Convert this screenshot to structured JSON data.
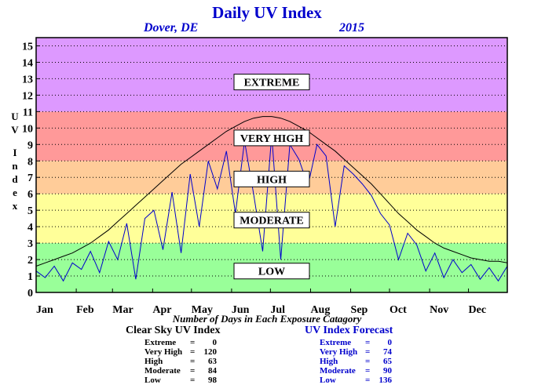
{
  "chart_data": {
    "type": "line",
    "title": "Daily UV Index",
    "location": "Dover, DE",
    "year": "2015",
    "ylabel": "UV Index",
    "xlabel": "Number of Days in Each Exposure Catagory",
    "ylim": [
      0,
      15
    ],
    "yticks": [
      0,
      1,
      2,
      3,
      4,
      5,
      6,
      7,
      8,
      9,
      10,
      11,
      12,
      13,
      14,
      15
    ],
    "xlim": [
      1,
      365
    ],
    "month_labels": [
      "Jan",
      "Feb",
      "Mar",
      "Apr",
      "May",
      "Jun",
      "Jul",
      "Aug",
      "Sep",
      "Oct",
      "Nov",
      "Dec"
    ],
    "month_start_days": [
      1,
      32,
      60,
      91,
      121,
      152,
      182,
      213,
      244,
      274,
      305,
      335
    ],
    "grid": "horizontal-dotted",
    "bands": [
      {
        "label": "LOW",
        "from": 0,
        "to": 3,
        "color": "#99ff99",
        "label_y": 1.3
      },
      {
        "label": "MODERATE",
        "from": 3,
        "to": 6,
        "color": "#ffff99",
        "label_y": 4.4
      },
      {
        "label": "HIGH",
        "from": 6,
        "to": 8,
        "color": "#ffcc99",
        "label_y": 6.9
      },
      {
        "label": "VERY HIGH",
        "from": 8,
        "to": 11,
        "color": "#ff9999",
        "label_y": 9.4
      },
      {
        "label": "EXTREME",
        "from": 11,
        "to": 15.5,
        "color": "#dd99ff",
        "label_y": 12.8
      }
    ],
    "series": [
      {
        "name": "Clear Sky UV Index",
        "color": "#000000",
        "days": [
          1,
          8,
          15,
          22,
          29,
          36,
          43,
          50,
          57,
          64,
          71,
          78,
          85,
          92,
          99,
          106,
          113,
          120,
          127,
          134,
          141,
          148,
          155,
          162,
          169,
          176,
          183,
          190,
          197,
          204,
          211,
          218,
          225,
          232,
          239,
          246,
          253,
          260,
          267,
          274,
          281,
          288,
          295,
          302,
          309,
          316,
          323,
          330,
          337,
          344,
          351,
          358,
          365
        ],
        "values": [
          1.6,
          1.8,
          2.0,
          2.2,
          2.4,
          2.7,
          3.0,
          3.4,
          3.8,
          4.3,
          4.8,
          5.3,
          5.8,
          6.3,
          6.8,
          7.3,
          7.8,
          8.2,
          8.6,
          9.0,
          9.4,
          9.8,
          10.1,
          10.4,
          10.6,
          10.7,
          10.7,
          10.6,
          10.4,
          10.1,
          9.8,
          9.4,
          9.0,
          8.6,
          8.1,
          7.6,
          7.1,
          6.6,
          6.0,
          5.4,
          4.8,
          4.3,
          3.8,
          3.4,
          3.0,
          2.7,
          2.5,
          2.3,
          2.1,
          2.0,
          1.9,
          1.9,
          1.8
        ]
      },
      {
        "name": "UV Index Forecast",
        "color": "#0000cc",
        "days": [
          1,
          8,
          15,
          22,
          29,
          36,
          43,
          50,
          57,
          64,
          71,
          78,
          85,
          92,
          99,
          106,
          113,
          120,
          127,
          134,
          141,
          148,
          155,
          162,
          169,
          176,
          183,
          190,
          197,
          204,
          211,
          218,
          225,
          232,
          239,
          246,
          253,
          260,
          267,
          274,
          281,
          288,
          295,
          302,
          309,
          316,
          323,
          330,
          337,
          344,
          351,
          358,
          365
        ],
        "values": [
          1.3,
          0.9,
          1.6,
          0.7,
          1.8,
          1.4,
          2.5,
          1.2,
          3.1,
          2.0,
          4.2,
          0.8,
          4.5,
          5.0,
          2.6,
          6.1,
          2.4,
          7.2,
          4.0,
          8.0,
          6.3,
          8.6,
          4.8,
          9.2,
          6.0,
          2.5,
          9.6,
          2.0,
          9.0,
          8.1,
          6.5,
          9.0,
          8.3,
          4.0,
          7.7,
          7.2,
          6.6,
          5.9,
          4.8,
          4.1,
          2.0,
          3.6,
          2.9,
          1.3,
          2.4,
          0.9,
          2.0,
          1.2,
          1.7,
          0.8,
          1.5,
          0.7,
          1.6
        ]
      }
    ]
  },
  "clear_sky_summary": {
    "heading": "Clear Sky UV Index",
    "rows": [
      {
        "label": "Extreme",
        "value": "0"
      },
      {
        "label": "Very High",
        "value": "120"
      },
      {
        "label": "High",
        "value": "63"
      },
      {
        "label": "Moderate",
        "value": "84"
      },
      {
        "label": "Low",
        "value": "98"
      }
    ]
  },
  "forecast_summary": {
    "heading": "UV Index Forecast",
    "rows": [
      {
        "label": "Extreme",
        "value": "0"
      },
      {
        "label": "Very High",
        "value": "74"
      },
      {
        "label": "High",
        "value": "65"
      },
      {
        "label": "Moderate",
        "value": "90"
      },
      {
        "label": "Low",
        "value": "136"
      }
    ]
  }
}
